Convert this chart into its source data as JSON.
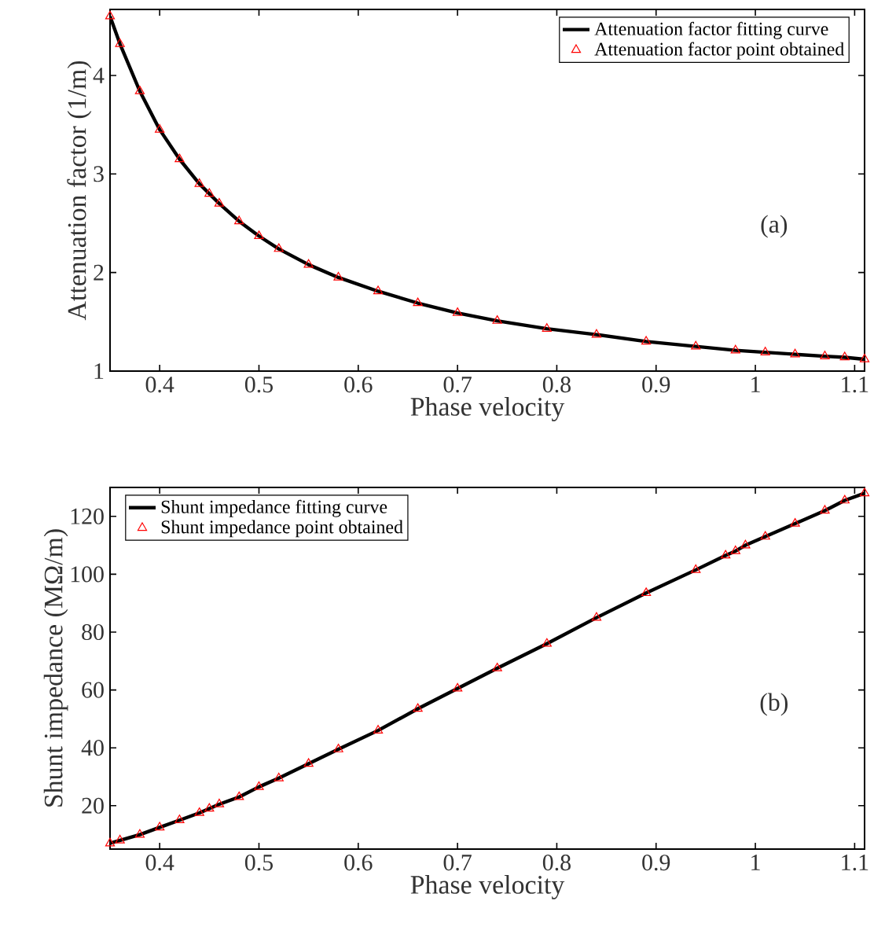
{
  "chart_data": [
    {
      "type": "line",
      "xlabel": "Phase velocity",
      "ylabel": "Attenuation factor (1/m)",
      "annotations": [
        "(a)"
      ],
      "xlim": [
        0.35,
        1.11
      ],
      "ylim": [
        1,
        4.67
      ],
      "xticks": [
        0.4,
        0.5,
        0.6,
        0.7,
        0.8,
        0.9,
        1,
        1.1
      ],
      "yticks": [
        1,
        2,
        3,
        4
      ],
      "grid": false,
      "legend": "top right",
      "series": [
        {
          "name": "Attenuation factor fitting curve",
          "marker": "none",
          "color": "#000000",
          "x": [
            0.35,
            0.36,
            0.38,
            0.4,
            0.42,
            0.44,
            0.45,
            0.46,
            0.48,
            0.5,
            0.52,
            0.55,
            0.58,
            0.62,
            0.66,
            0.7,
            0.74,
            0.79,
            0.84,
            0.89,
            0.94,
            0.98,
            1.01,
            1.04,
            1.07,
            1.09,
            1.11
          ],
          "values": [
            4.6,
            4.32,
            3.84,
            3.45,
            3.15,
            2.9,
            2.8,
            2.7,
            2.52,
            2.37,
            2.24,
            2.08,
            1.95,
            1.81,
            1.69,
            1.59,
            1.51,
            1.43,
            1.37,
            1.3,
            1.25,
            1.21,
            1.19,
            1.17,
            1.15,
            1.14,
            1.12
          ]
        },
        {
          "name": "Attenuation factor point obtained",
          "type": "scatter",
          "marker": "triangle",
          "color": "#ff0000",
          "x": [
            0.35,
            0.36,
            0.38,
            0.4,
            0.42,
            0.44,
            0.45,
            0.46,
            0.48,
            0.5,
            0.52,
            0.55,
            0.58,
            0.62,
            0.66,
            0.7,
            0.74,
            0.79,
            0.84,
            0.89,
            0.94,
            0.98,
            1.01,
            1.04,
            1.07,
            1.09,
            1.11
          ],
          "values": [
            4.6,
            4.32,
            3.84,
            3.45,
            3.15,
            2.9,
            2.8,
            2.7,
            2.52,
            2.37,
            2.24,
            2.08,
            1.95,
            1.81,
            1.69,
            1.59,
            1.51,
            1.43,
            1.37,
            1.3,
            1.25,
            1.21,
            1.19,
            1.17,
            1.15,
            1.14,
            1.12
          ]
        }
      ]
    },
    {
      "type": "line",
      "xlabel": "Phase velocity",
      "ylabel": "Shunt impedance (MΩ/m)",
      "annotations": [
        "(b)"
      ],
      "xlim": [
        0.35,
        1.11
      ],
      "ylim": [
        5,
        130
      ],
      "xticks": [
        0.4,
        0.5,
        0.6,
        0.7,
        0.8,
        0.9,
        1,
        1.1
      ],
      "yticks": [
        20,
        40,
        60,
        80,
        100,
        120
      ],
      "grid": false,
      "legend": "top left",
      "series": [
        {
          "name": "Shunt impedance fitting curve",
          "marker": "none",
          "color": "#000000",
          "x": [
            0.35,
            0.36,
            0.38,
            0.4,
            0.42,
            0.44,
            0.45,
            0.46,
            0.48,
            0.5,
            0.52,
            0.55,
            0.58,
            0.62,
            0.66,
            0.7,
            0.74,
            0.79,
            0.84,
            0.89,
            0.94,
            0.97,
            0.98,
            0.99,
            1.01,
            1.04,
            1.07,
            1.09,
            1.11
          ],
          "values": [
            7,
            8,
            10,
            12.5,
            15,
            17.5,
            19,
            20.5,
            23,
            26.5,
            29.5,
            34.5,
            39.5,
            46,
            53.5,
            60.5,
            67.5,
            76,
            85,
            93.5,
            101.5,
            106.5,
            108,
            110,
            113,
            117.5,
            122,
            125.5,
            128
          ]
        },
        {
          "name": "Shunt impedance point obtained",
          "type": "scatter",
          "marker": "triangle",
          "color": "#ff0000",
          "x": [
            0.35,
            0.36,
            0.38,
            0.4,
            0.42,
            0.44,
            0.45,
            0.46,
            0.48,
            0.5,
            0.52,
            0.55,
            0.58,
            0.62,
            0.66,
            0.7,
            0.74,
            0.79,
            0.84,
            0.89,
            0.94,
            0.97,
            0.98,
            0.99,
            1.01,
            1.04,
            1.07,
            1.09,
            1.11
          ],
          "values": [
            7,
            8,
            10,
            12.5,
            15,
            17.5,
            19,
            20.5,
            23,
            26.5,
            29.5,
            34.5,
            39.5,
            46,
            53.5,
            60.5,
            67.5,
            76,
            85,
            93.5,
            101.5,
            106.5,
            108,
            110,
            113,
            117.5,
            122,
            125.5,
            128
          ]
        }
      ]
    }
  ]
}
